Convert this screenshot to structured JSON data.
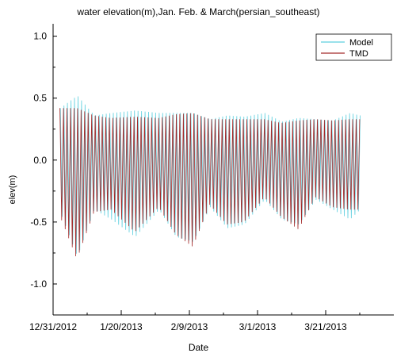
{
  "chart_data": {
    "type": "line",
    "title": "water elevation(m),Jan. Feb. & March(persian_southeast)",
    "xlabel": "Date",
    "ylabel": "elev(m)",
    "xlim": [
      "2012-12-31",
      "2013-04-10"
    ],
    "ylim": [
      -1.25,
      1.1
    ],
    "x_ticks": [
      "12/31/2012",
      "1/20/2013",
      "2/9/2013",
      "3/1/2013",
      "3/21/2013"
    ],
    "y_ticks": [
      "1.0",
      "0.5",
      "0.0",
      "-0.5",
      "-1.0"
    ],
    "y_tick_values": [
      1.0,
      0.5,
      0.0,
      -0.5,
      -1.0
    ],
    "x_range_of_data": [
      "2013-01-02",
      "2013-03-31"
    ],
    "legend": {
      "placement": "top-right"
    },
    "series": [
      {
        "name": "Model",
        "color": "#5ecfdf",
        "envelope": {
          "dates": [
            "2013-01-02",
            "2013-01-07",
            "2013-01-12",
            "2013-01-17",
            "2013-01-24",
            "2013-01-31",
            "2013-02-05",
            "2013-02-10",
            "2013-02-15",
            "2013-02-20",
            "2013-02-25",
            "2013-03-03",
            "2013-03-08",
            "2013-03-13",
            "2013-03-18",
            "2013-03-23",
            "2013-03-28",
            "2013-03-31"
          ],
          "max": [
            0.42,
            0.52,
            0.36,
            0.38,
            0.4,
            0.38,
            0.38,
            0.38,
            0.33,
            0.36,
            0.35,
            0.38,
            0.31,
            0.34,
            0.33,
            0.32,
            0.38,
            0.36
          ],
          "min": [
            -0.42,
            -0.78,
            -0.4,
            -0.48,
            -0.62,
            -0.4,
            -0.62,
            -0.66,
            -0.38,
            -0.55,
            -0.52,
            -0.32,
            -0.48,
            -0.52,
            -0.32,
            -0.4,
            -0.48,
            -0.4
          ]
        }
      },
      {
        "name": "TMD",
        "color": "#a52a2a",
        "envelope": {
          "dates": [
            "2013-01-02",
            "2013-01-07",
            "2013-01-12",
            "2013-01-17",
            "2013-01-24",
            "2013-01-31",
            "2013-02-05",
            "2013-02-10",
            "2013-02-15",
            "2013-02-20",
            "2013-02-25",
            "2013-03-03",
            "2013-03-08",
            "2013-03-13",
            "2013-03-18",
            "2013-03-23",
            "2013-03-28",
            "2013-03-31"
          ],
          "max": [
            0.42,
            0.42,
            0.36,
            0.34,
            0.35,
            0.34,
            0.37,
            0.38,
            0.33,
            0.33,
            0.33,
            0.33,
            0.3,
            0.32,
            0.33,
            0.32,
            0.33,
            0.33
          ],
          "min": [
            -0.45,
            -0.8,
            -0.42,
            -0.4,
            -0.58,
            -0.38,
            -0.6,
            -0.7,
            -0.36,
            -0.52,
            -0.5,
            -0.3,
            -0.46,
            -0.56,
            -0.3,
            -0.38,
            -0.4,
            -0.4
          ]
        }
      }
    ]
  }
}
